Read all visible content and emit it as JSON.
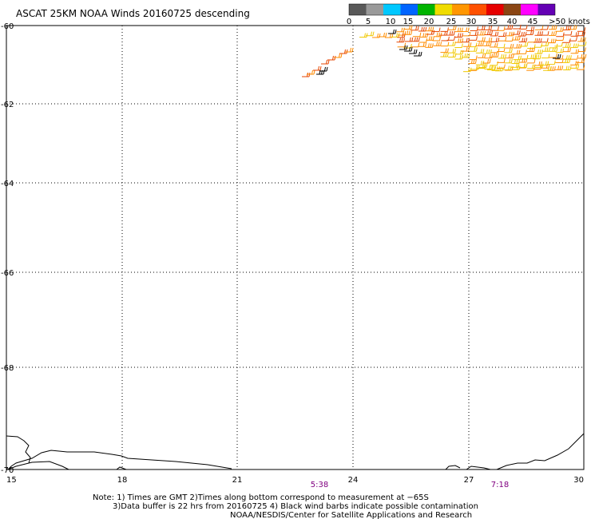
{
  "title": "ASCAT 25KM NOAA Winds 20160725 descending",
  "colorbar": {
    "ticks": [
      "0",
      "5",
      "10",
      "15",
      "20",
      "25",
      "30",
      "35",
      "40",
      "45",
      ">50 knots"
    ],
    "colors": [
      "#595959",
      "#9a9a9a",
      "#00c8ff",
      "#0064ff",
      "#00b400",
      "#f0dc00",
      "#ff9600",
      "#ff5000",
      "#e60000",
      "#8b4513",
      "#ff00ff",
      "#6400b4"
    ]
  },
  "axes": {
    "x_ticks": [
      "15",
      "18",
      "21",
      "24",
      "27",
      "30"
    ],
    "y_ticks": [
      "-60",
      "-62",
      "-64",
      "-66",
      "-68",
      "-70"
    ]
  },
  "pass_times": [
    {
      "label": "5:38",
      "color": "#800080"
    },
    {
      "label": "7:18",
      "color": "#800080"
    }
  ],
  "notes": {
    "line1": "Note: 1) Times are GMT 2)Times along bottom correspond to measurement at −65S",
    "line2": "3)Data buffer is 22 hrs from 20160725 4) Black wind barbs indicate possible contamination",
    "line3": "NOAA/NESDIS/Center for Satellite Applications and Research"
  },
  "colors": {
    "barb_yellow": "#f0c800",
    "barb_orange": "#ff8c00",
    "barb_red": "#e64600",
    "barb_contaminated": "#000000",
    "gridline": "#000000"
  }
}
